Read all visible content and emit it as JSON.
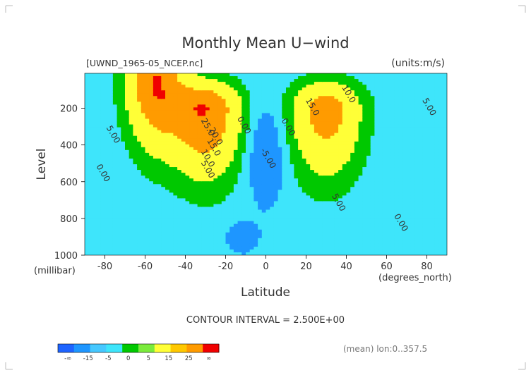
{
  "chart_data": {
    "type": "heatmap",
    "title": "Monthly Mean U−wind",
    "dataset_label": "[UWND_1965-05_NCEP.nc]",
    "units_label": "(units:m/s)",
    "xlabel": "Latitude",
    "x_units": "(degrees_north)",
    "ylabel": "Level",
    "y_units": "(millibar)",
    "xlim": [
      -90,
      90
    ],
    "ylim": [
      1000,
      10
    ],
    "x_ticks": [
      -80,
      -60,
      -40,
      -20,
      0,
      20,
      40,
      60,
      80
    ],
    "y_ticks": [
      200,
      400,
      600,
      800,
      1000
    ],
    "contour_interval_text": "CONTOUR INTERVAL = 2.500E+00",
    "contour_interval": 2.5,
    "footer_note": "(mean) lon:0..357.5",
    "contour_labels": [
      {
        "text": "10.0",
        "lat": 40,
        "lev": 130
      },
      {
        "text": "15.0",
        "lat": 22,
        "lev": 200
      },
      {
        "text": "5.00",
        "lat": 80,
        "lev": 200
      },
      {
        "text": "0.00",
        "lat": 10,
        "lev": 310
      },
      {
        "text": "5.00",
        "lat": 35,
        "lev": 720
      },
      {
        "text": "0.00",
        "lat": 66,
        "lev": 830
      },
      {
        "text": "-5.00",
        "lat": 0,
        "lev": 480
      },
      {
        "text": "0.00",
        "lat": -12,
        "lev": 300
      },
      {
        "text": "5.00",
        "lat": -77,
        "lev": 350
      },
      {
        "text": "0.00",
        "lat": -82,
        "lev": 560
      },
      {
        "text": "25.0",
        "lat": -30,
        "lev": 310
      },
      {
        "text": "20.0",
        "lat": -26,
        "lev": 360
      },
      {
        "text": "15.0",
        "lat": -27,
        "lev": 420
      },
      {
        "text": "10.0",
        "lat": -30,
        "lev": 480
      },
      {
        "text": "5.00",
        "lat": -30,
        "lev": 540
      }
    ],
    "colorbar": {
      "colors": [
        "#1e64ff",
        "#1e96ff",
        "#46c8ff",
        "#3ee5fb",
        "#00c800",
        "#7aeb3c",
        "#ffff37",
        "#ffc800",
        "#ff9b00",
        "#f00000"
      ],
      "tick_labels": [
        "-∞",
        "-15",
        "-5",
        "0",
        "5",
        "15",
        "25",
        "∞"
      ]
    },
    "jets": [
      {
        "lat": -30,
        "lev": 200,
        "max": 27.5
      },
      {
        "lat": -55,
        "lev": 30,
        "max": 27.5
      },
      {
        "lat": 30,
        "lev": 200,
        "max": 22.5
      }
    ]
  }
}
